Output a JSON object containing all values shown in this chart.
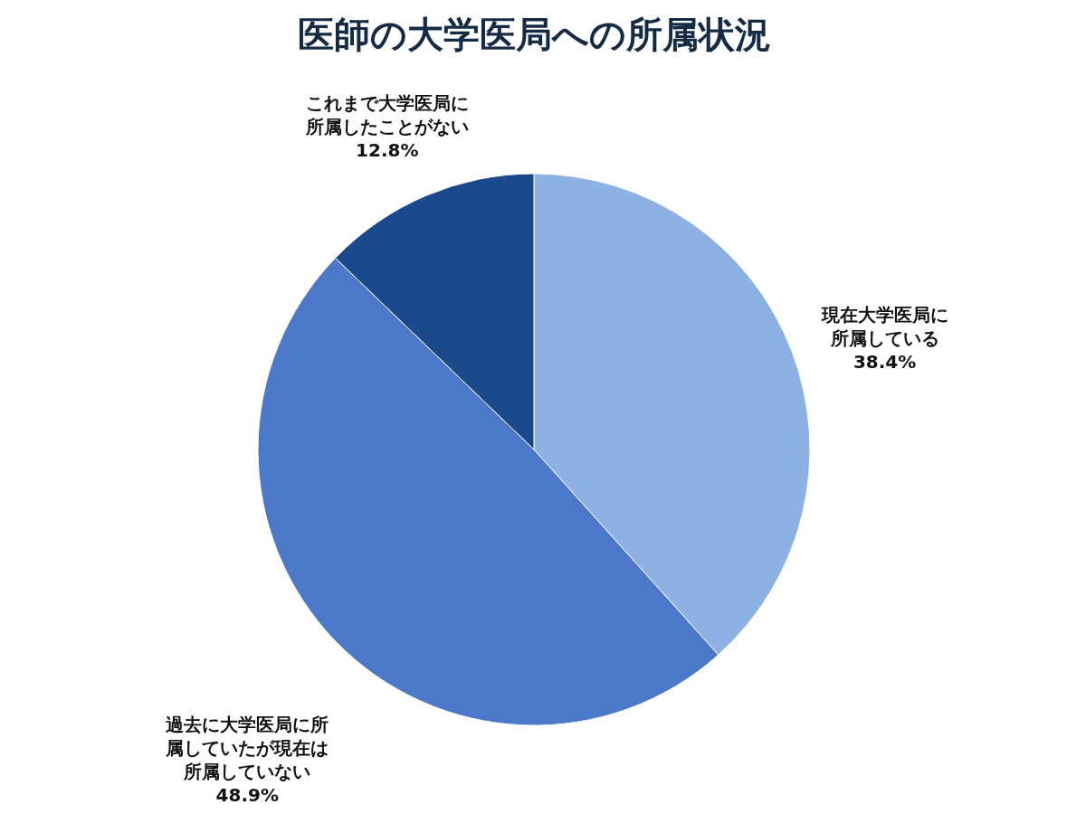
{
  "chart_data": {
    "type": "pie",
    "title": "医師の大学医局への所属状況",
    "categories": [
      "現在大学医局に所属している",
      "過去に大学医局に所属していたが現在は所属していない",
      "これまで大学医局に所属したことがない"
    ],
    "values": [
      38.4,
      48.9,
      12.8
    ],
    "value_labels": [
      "38.4%",
      "48.9%",
      "12.8%"
    ],
    "colors": [
      "#8eb1e3",
      "#4b78c8",
      "#1a4a8c"
    ],
    "legend": false
  }
}
